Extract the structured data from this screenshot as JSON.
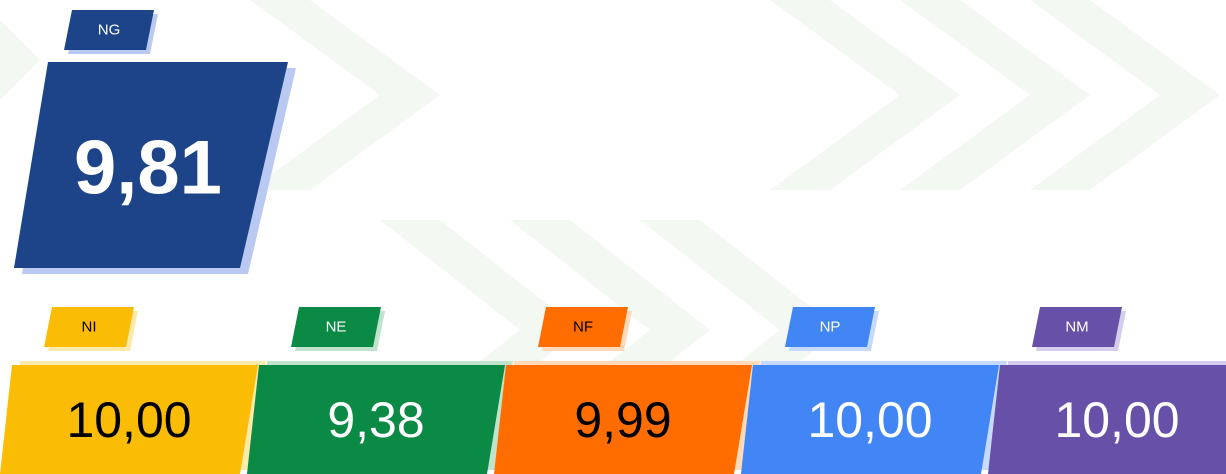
{
  "main": {
    "label": "NG",
    "value": "9,81"
  },
  "items": [
    {
      "label": "NI",
      "value": "10,00"
    },
    {
      "label": "NE",
      "value": "9,38"
    },
    {
      "label": "NF",
      "value": "9,99"
    },
    {
      "label": "NP",
      "value": "10,00"
    },
    {
      "label": "NM",
      "value": "10,00"
    }
  ]
}
